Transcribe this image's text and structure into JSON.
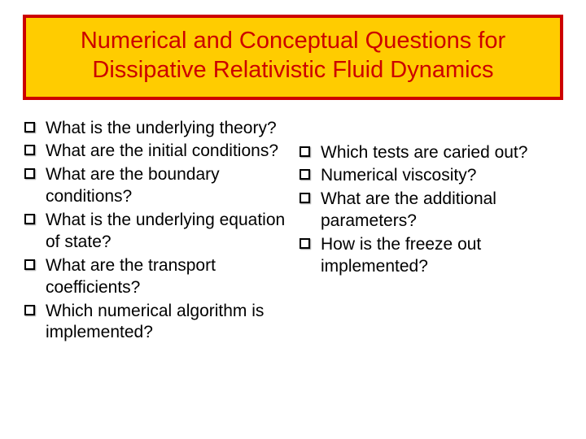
{
  "title": "Numerical and Conceptual Questions for Dissipative Relativistic Fluid Dynamics",
  "colors": {
    "title_bg": "#ffcc00",
    "title_border": "#cc0000",
    "title_text": "#cc0000",
    "body_text": "#000000",
    "slide_bg": "#ffffff"
  },
  "typography": {
    "title_fontsize": 29,
    "body_fontsize": 21,
    "font_family": "Arial"
  },
  "left_items": [
    " What is the underlying theory?",
    " What are the initial conditions?",
    " What are the boundary conditions?",
    "What is the underlying equation of state?",
    "What are the transport coefficients?",
    "Which numerical algorithm is implemented?"
  ],
  "right_items": [
    "Which tests are caried out?",
    "Numerical viscosity?",
    "What are the additional parameters?",
    "How is the freeze out implemented?"
  ]
}
